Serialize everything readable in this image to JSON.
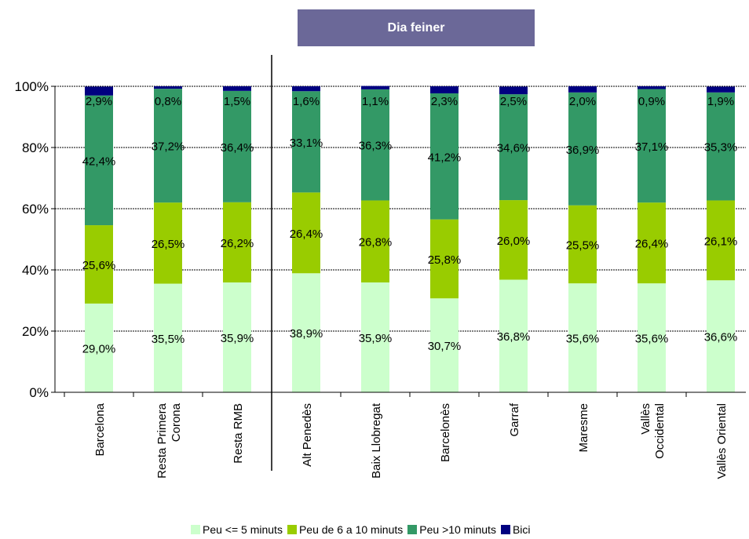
{
  "chart_data": {
    "type": "bar",
    "stacked": true,
    "title": "Dia feiner",
    "categories": [
      "Barcelona",
      "Resta Primera Corona",
      "Resta RMB",
      "Alt Penedès",
      "Baix Llobregat",
      "Barcelonès",
      "Garraf",
      "Maresme",
      "Vallès Occidental",
      "Vallès Oriental"
    ],
    "category_lines": [
      [
        "Barcelona"
      ],
      [
        "Resta Primera",
        "Corona"
      ],
      [
        "Resta RMB"
      ],
      [
        "Alt Penedès"
      ],
      [
        "Baix Llobregat"
      ],
      [
        "Barcelonès"
      ],
      [
        "Garraf"
      ],
      [
        "Maresme"
      ],
      [
        "Vallès",
        "Occidental"
      ],
      [
        "Vallès Oriental"
      ]
    ],
    "series": [
      {
        "name": "Peu <= 5 minuts",
        "color": "#ccffcc",
        "values": [
          29.0,
          35.5,
          35.9,
          38.9,
          35.9,
          30.7,
          36.8,
          35.6,
          35.6,
          36.6
        ],
        "labels": [
          "29,0%",
          "35,5%",
          "35,9%",
          "38,9%",
          "35,9%",
          "30,7%",
          "36,8%",
          "35,6%",
          "35,6%",
          "36,6%"
        ]
      },
      {
        "name": "Peu de 6 a 10 minuts",
        "color": "#99cc00",
        "values": [
          25.6,
          26.5,
          26.2,
          26.4,
          26.8,
          25.8,
          26.0,
          25.5,
          26.4,
          26.1
        ],
        "labels": [
          "25,6%",
          "26,5%",
          "26,2%",
          "26,4%",
          "26,8%",
          "25,8%",
          "26,0%",
          "25,5%",
          "26,4%",
          "26,1%"
        ]
      },
      {
        "name": "Peu >10 minuts",
        "color": "#339966",
        "values": [
          42.4,
          37.2,
          36.4,
          33.1,
          36.3,
          41.2,
          34.6,
          36.9,
          37.1,
          35.3
        ],
        "labels": [
          "42,4%",
          "37,2%",
          "36,4%",
          "33,1%",
          "36,3%",
          "41,2%",
          "34,6%",
          "36,9%",
          "37,1%",
          "35,3%"
        ]
      },
      {
        "name": "Bici",
        "color": "#000080",
        "values": [
          2.9,
          0.8,
          1.5,
          1.6,
          1.1,
          2.3,
          2.5,
          2.0,
          0.9,
          1.9
        ],
        "labels": [
          "2,9%",
          "0,8%",
          "1,5%",
          "1,6%",
          "1,1%",
          "2,3%",
          "2,5%",
          "2,0%",
          "0,9%",
          "1,9%"
        ]
      }
    ],
    "yticks": [
      "0%",
      "20%",
      "40%",
      "60%",
      "80%",
      "100%"
    ],
    "ylim": [
      0,
      100
    ],
    "grid": true,
    "legend_position": "bottom"
  }
}
